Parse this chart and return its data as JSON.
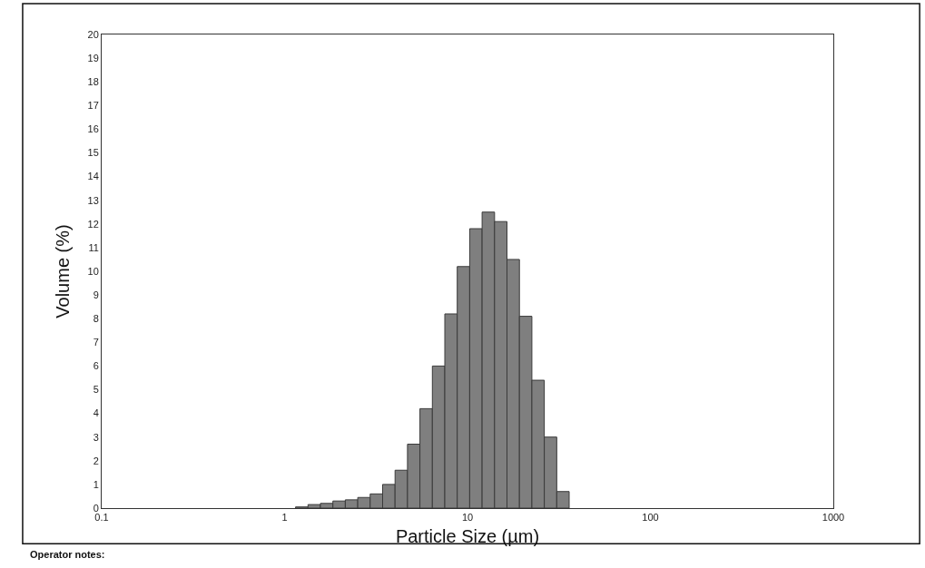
{
  "chart_data": {
    "type": "histogram",
    "xlabel": "Particle Size (µm)",
    "ylabel": "Volume (%)",
    "bins": [
      1.148,
      1.343,
      1.57,
      1.837,
      2.148,
      2.512,
      2.938,
      3.436,
      4.018,
      4.699,
      5.495,
      6.427,
      7.516,
      8.79,
      10.28,
      12.02,
      14.06,
      16.44,
      19.23,
      22.49,
      26.3,
      30.76,
      35.97
    ],
    "values": [
      0.05,
      0.15,
      0.2,
      0.3,
      0.35,
      0.45,
      0.6,
      1.0,
      1.6,
      2.7,
      4.2,
      6.0,
      8.2,
      10.2,
      11.8,
      12.5,
      12.1,
      10.5,
      8.1,
      5.4,
      3.0,
      0.7
    ],
    "color": "#7f7f7f",
    "log": "x",
    "xlim": [
      0.1,
      1000
    ],
    "xticks": [
      0.1,
      1,
      10,
      100,
      1000
    ],
    "ylim": [
      0,
      20
    ],
    "yticks": [
      0,
      1,
      2,
      3,
      4,
      5,
      6,
      7,
      8,
      9,
      10,
      11,
      12,
      13,
      14,
      15,
      16,
      17,
      18,
      19,
      20
    ],
    "annotations": [
      "Operator notes:"
    ]
  }
}
